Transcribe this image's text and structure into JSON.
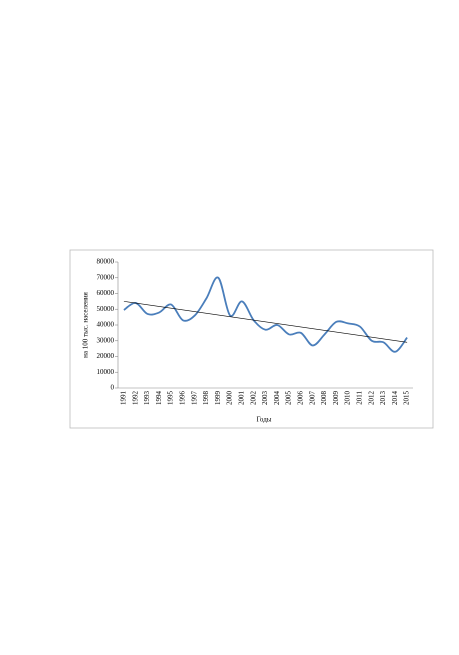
{
  "chart_data": {
    "type": "line",
    "x_label": "Годы",
    "y_label": "на 100 тыс. населения",
    "categories": [
      "1991",
      "1992",
      "1993",
      "1994",
      "1995",
      "1996",
      "1997",
      "1998",
      "1999",
      "2000",
      "2001",
      "2002",
      "2003",
      "2004",
      "2005",
      "2006",
      "2007",
      "2008",
      "2009",
      "2010",
      "2011",
      "2012",
      "2013",
      "2014",
      "2015"
    ],
    "series": [
      {
        "color": "#4a7ebb",
        "values": [
          49500,
          54000,
          47000,
          48000,
          53000,
          43000,
          46000,
          57000,
          70000,
          46000,
          55000,
          43000,
          37000,
          40000,
          34000,
          35000,
          27000,
          34000,
          42000,
          41000,
          39000,
          30000,
          29000,
          23000,
          32000
        ]
      }
    ],
    "trendline": {
      "color": "#000000",
      "values": [
        55000,
        29000
      ]
    },
    "ylim": [
      0,
      80000
    ],
    "yticks": [
      0,
      10000,
      20000,
      30000,
      40000,
      50000,
      60000,
      70000,
      80000
    ]
  }
}
